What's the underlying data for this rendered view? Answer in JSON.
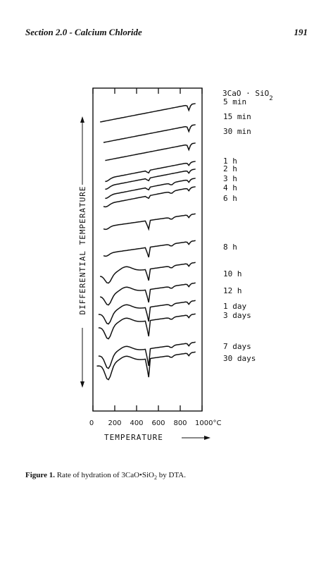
{
  "header": {
    "section": "Section 2.0 - Calcium Chloride",
    "page_number": "191"
  },
  "caption": {
    "label": "Figure 1.",
    "text_before": "Rate of hydration of 3CaO•SiO",
    "subscript": "2",
    "text_after": " by DTA."
  },
  "chart_data": {
    "type": "line",
    "title": "3CaO · SiO2",
    "xlabel": "TEMPERATURE",
    "ylabel": "DIFFERENTIAL TEMPERATURE",
    "x_ticks": [
      "0",
      "200",
      "400",
      "600",
      "800",
      "1000°C"
    ],
    "xlim": [
      0,
      1000
    ],
    "series": [
      {
        "name": "5 min"
      },
      {
        "name": "15 min"
      },
      {
        "name": "30 min"
      },
      {
        "name": "1 h"
      },
      {
        "name": "2 h"
      },
      {
        "name": "3 h"
      },
      {
        "name": "4 h"
      },
      {
        "name": "6 h"
      },
      {
        "name": "8 h"
      },
      {
        "name": "10 h"
      },
      {
        "name": "12 h"
      },
      {
        "name": "1 day"
      },
      {
        "name": "3 days"
      },
      {
        "name": "7 days"
      },
      {
        "name": "30 days"
      }
    ]
  }
}
